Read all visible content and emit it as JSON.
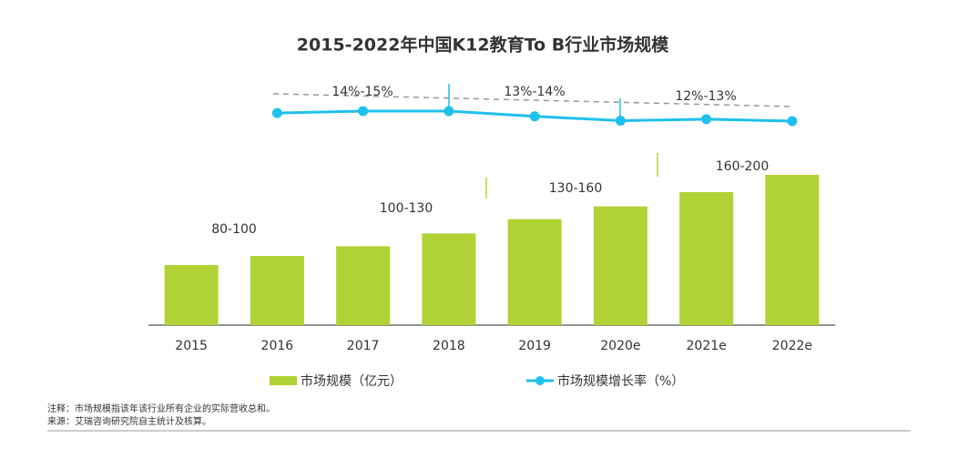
{
  "chart_data": {
    "type": "bar_line",
    "title": "2015-2022年中国K12教育To B行业市场规模",
    "categories": [
      "2015",
      "2016",
      "2017",
      "2018",
      "2019",
      "2020e",
      "2021e",
      "2022e"
    ],
    "series": [
      {
        "name": "市场规模（亿元）",
        "color": "#b0d234",
        "values": [
          80,
          92,
          105,
          122,
          141,
          158,
          177,
          200
        ]
      },
      {
        "name": "市场规模增长率（%）",
        "color": "#1fc0ec",
        "values": [
          null,
          14.6,
          15,
          15,
          13.9,
          13,
          13.3,
          12.9
        ]
      }
    ],
    "annotations": [
      {
        "text": "80-100"
      },
      {
        "text": "100-130"
      },
      {
        "text": "130-160"
      },
      {
        "text": "160-200"
      },
      {
        "text": "14%-15%"
      },
      {
        "text": "13%-14%"
      },
      {
        "text": "12%-13%"
      }
    ],
    "notes": [
      "注释：市场规模指该年该行业所有企业的实际营收总和。",
      "来源：艾瑞咨询研究院自主统计及核算。"
    ]
  }
}
